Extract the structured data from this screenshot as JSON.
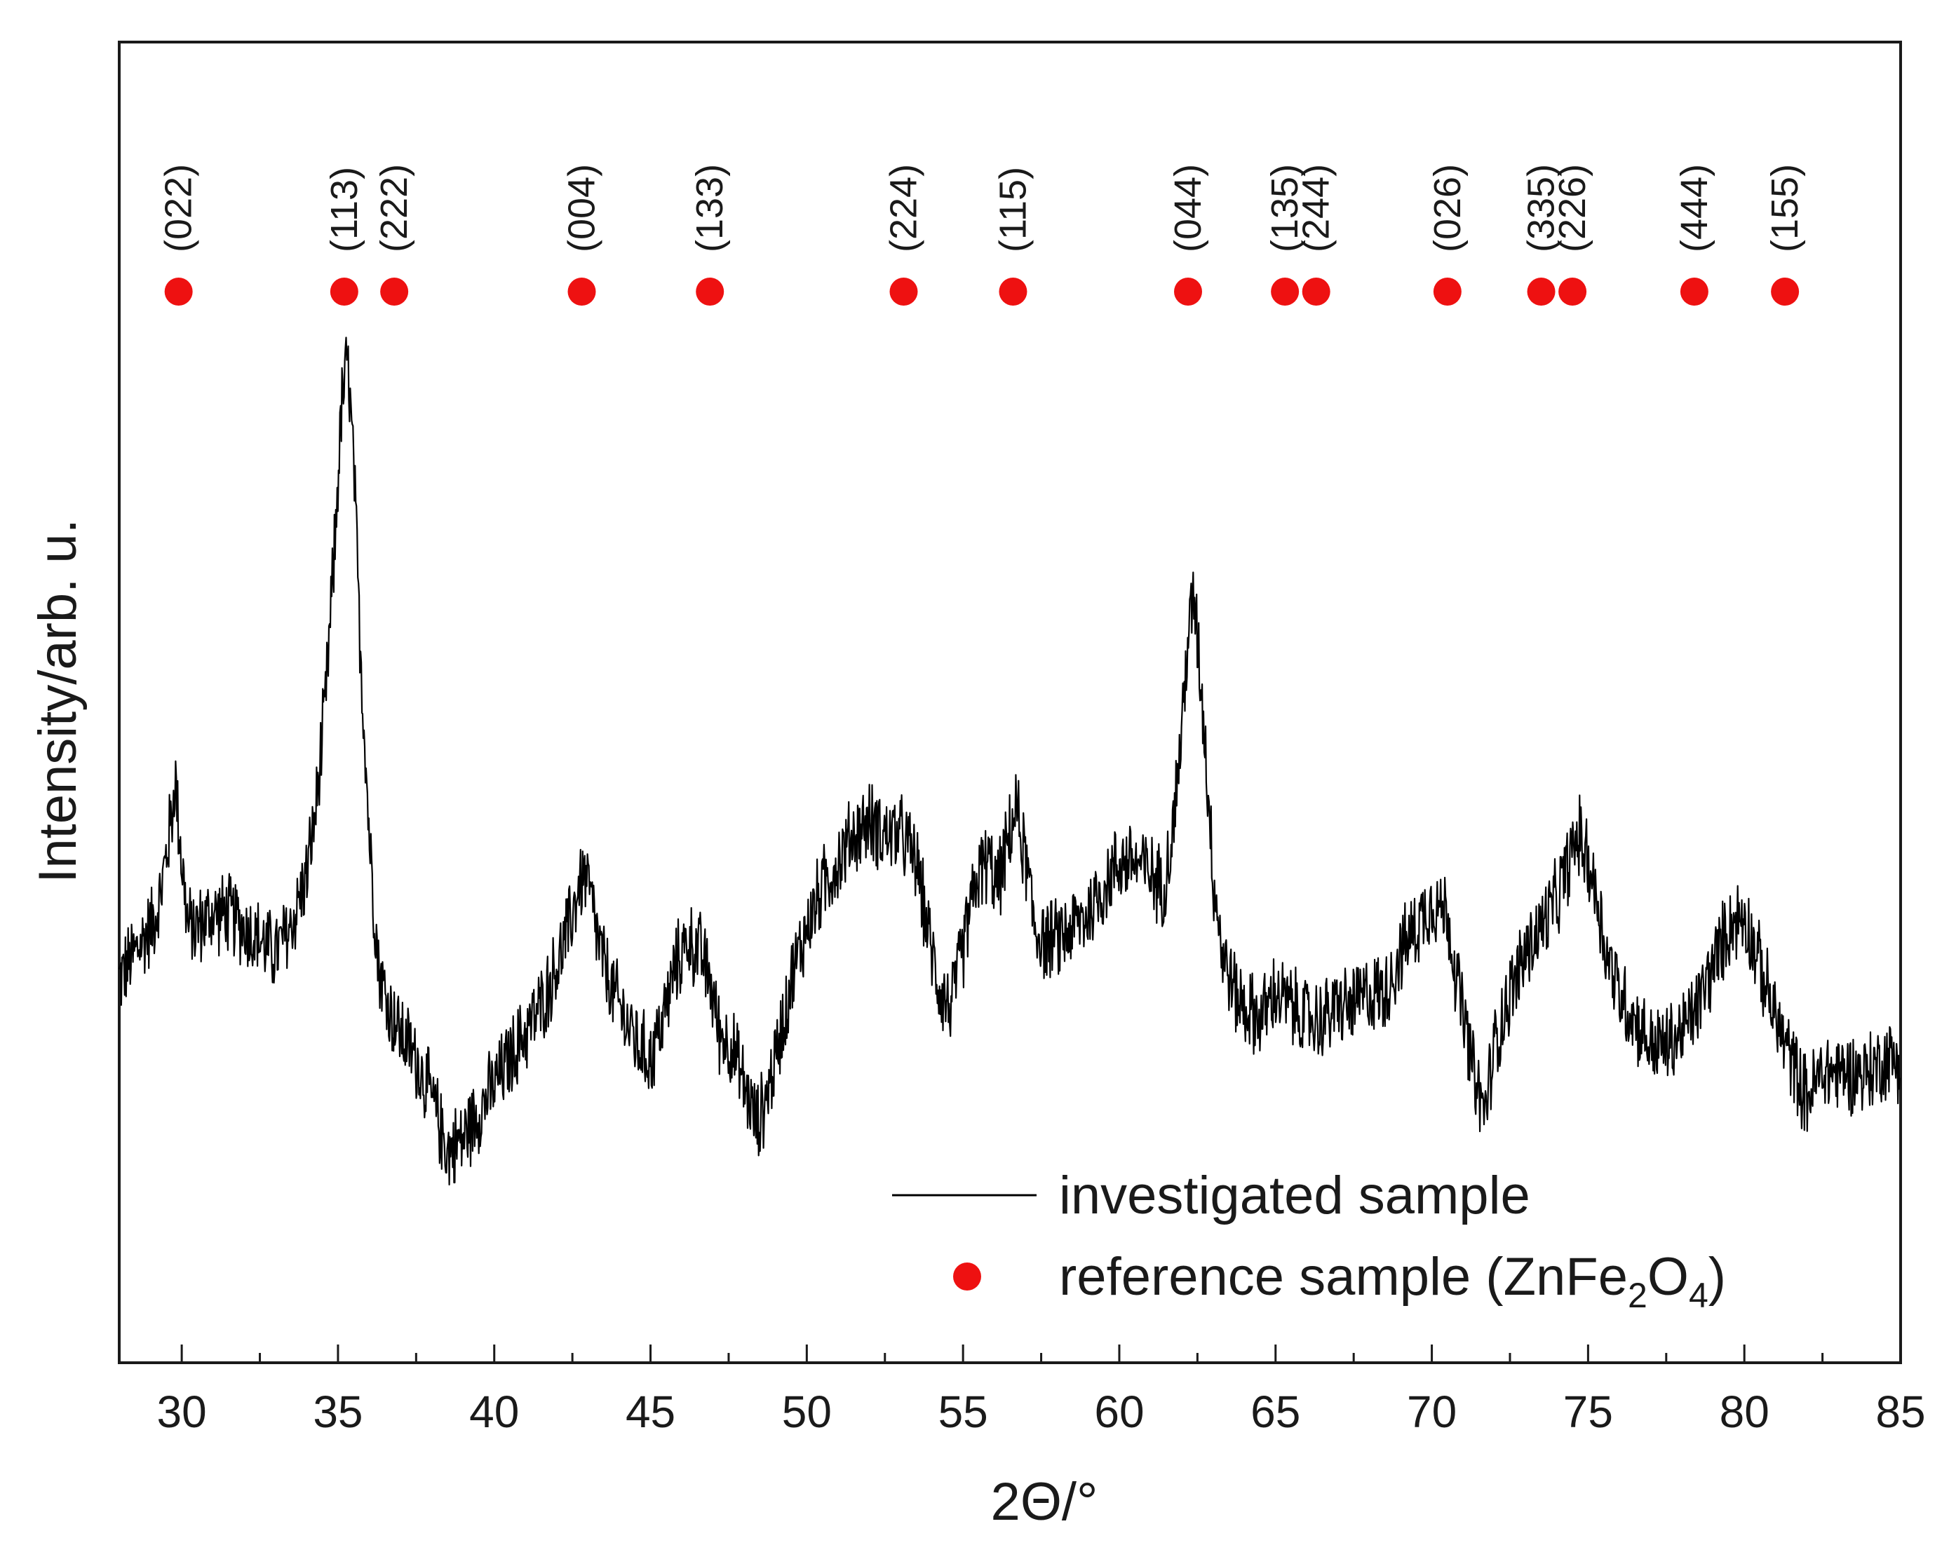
{
  "chart_data": {
    "type": "line",
    "xlabel": "2Θ/°",
    "ylabel": "Intensity/arb. u.",
    "xlim": [
      28,
      85
    ],
    "ylim": [
      0,
      100
    ],
    "x_ticks": [
      30,
      35,
      40,
      45,
      50,
      55,
      60,
      65,
      70,
      75,
      80,
      85
    ],
    "y_ticks_visible": false,
    "colors": {
      "measured": "#000000",
      "reference": "#ee1111",
      "axis": "#1a1a1a"
    },
    "series": [
      {
        "name": "investigated sample",
        "style": "line",
        "color": "#000000",
        "x": [
          28.0,
          28.5,
          29.0,
          29.3,
          29.6,
          29.8,
          30.0,
          30.2,
          30.5,
          31.0,
          31.5,
          32.0,
          32.5,
          33.0,
          33.5,
          34.0,
          34.3,
          34.6,
          34.9,
          35.1,
          35.3,
          35.5,
          35.7,
          36.0,
          36.3,
          36.6,
          37.0,
          37.5,
          38.0,
          38.5,
          39.0,
          39.5,
          40.0,
          40.5,
          41.0,
          41.5,
          42.0,
          42.4,
          42.7,
          42.9,
          43.1,
          43.4,
          43.8,
          44.2,
          44.6,
          45.0,
          45.4,
          45.8,
          46.2,
          46.6,
          46.9,
          47.2,
          47.6,
          48.0,
          48.4,
          48.7,
          49.0,
          49.5,
          50.0,
          50.5,
          51.0,
          51.5,
          52.0,
          52.5,
          53.0,
          53.5,
          54.0,
          54.3,
          54.6,
          54.9,
          55.2,
          55.5,
          55.8,
          56.1,
          56.4,
          56.7,
          57.0,
          57.3,
          57.6,
          58.0,
          58.5,
          59.0,
          59.5,
          60.0,
          60.5,
          61.0,
          61.4,
          61.7,
          62.0,
          62.2,
          62.4,
          62.6,
          62.8,
          63.0,
          63.3,
          63.7,
          64.0,
          64.5,
          65.0,
          65.5,
          66.0,
          66.5,
          67.0,
          67.5,
          68.0,
          68.5,
          69.0,
          69.5,
          70.0,
          70.5,
          70.8,
          71.1,
          71.4,
          71.7,
          72.0,
          72.5,
          73.0,
          73.5,
          74.0,
          74.4,
          74.7,
          75.0,
          75.3,
          75.6,
          76.0,
          76.5,
          77.0,
          77.5,
          78.0,
          78.5,
          79.0,
          79.5,
          80.0,
          80.5,
          81.0,
          81.5,
          82.0,
          82.5,
          83.0,
          83.5,
          84.0,
          84.5,
          85.0
        ],
        "y": [
          29,
          31,
          33,
          35,
          40,
          44,
          38,
          33,
          33,
          34,
          34,
          33,
          32,
          31,
          33,
          37,
          42,
          50,
          62,
          72,
          76,
          68,
          55,
          40,
          30,
          27,
          25,
          23,
          20,
          16,
          17,
          19,
          21,
          23,
          25,
          27,
          30,
          33,
          36,
          37,
          35,
          31,
          28,
          26,
          24,
          23,
          26,
          30,
          32,
          31,
          29,
          25,
          24,
          21,
          18,
          20,
          23,
          29,
          33,
          36,
          38,
          40,
          41,
          40,
          40,
          38,
          31,
          28,
          27,
          30,
          34,
          37,
          38,
          36,
          39,
          42,
          38,
          33,
          32,
          32,
          33,
          34,
          36,
          38,
          38,
          37,
          36,
          40,
          48,
          55,
          58,
          52,
          45,
          37,
          31,
          28,
          27,
          26,
          28,
          27,
          26,
          26,
          27,
          27,
          28,
          28,
          31,
          33,
          35,
          34,
          29,
          25,
          21,
          19,
          24,
          28,
          31,
          33,
          35,
          38,
          40,
          38,
          35,
          31,
          28,
          26,
          24,
          24,
          25,
          27,
          30,
          33,
          34,
          30,
          26,
          23,
          20,
          22,
          22,
          22,
          22,
          23,
          23
        ],
        "noise_amplitude": 3.5
      },
      {
        "name": "reference sample (ZnFe2O4)",
        "style": "markers",
        "color": "#ee1111",
        "points": [
          {
            "x": 29.9,
            "hkl": "(022)"
          },
          {
            "x": 35.2,
            "hkl": "(113)"
          },
          {
            "x": 36.8,
            "hkl": "(222)"
          },
          {
            "x": 42.8,
            "hkl": "(004)"
          },
          {
            "x": 46.9,
            "hkl": "(133)"
          },
          {
            "x": 53.1,
            "hkl": "(224)"
          },
          {
            "x": 56.6,
            "hkl": "(115)"
          },
          {
            "x": 62.2,
            "hkl": "(044)"
          },
          {
            "x": 65.3,
            "hkl": "(135)"
          },
          {
            "x": 66.3,
            "hkl": "(244)"
          },
          {
            "x": 70.5,
            "hkl": "(026)"
          },
          {
            "x": 73.5,
            "hkl": "(335)"
          },
          {
            "x": 74.5,
            "hkl": "(226)"
          },
          {
            "x": 78.4,
            "hkl": "(444)"
          },
          {
            "x": 81.3,
            "hkl": "(155)"
          }
        ]
      }
    ],
    "legend": {
      "placement": "bottom-right",
      "line_label": "investigated sample",
      "marker_label_prefix": "reference sample (ZnFe",
      "marker_label_sub1": "2",
      "marker_label_mid": "O",
      "marker_label_sub2": "4",
      "marker_label_suffix": ")"
    }
  }
}
